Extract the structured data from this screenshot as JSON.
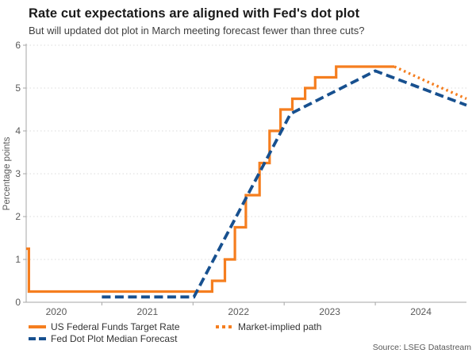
{
  "header": {
    "title": "Rate cut expectations are aligned with Fed's dot plot",
    "subtitle": "But will updated dot plot in March meeting forecast fewer than three cuts?"
  },
  "source": "Source: LSEG Datastream",
  "colors": {
    "orange": "#f57e1f",
    "navy": "#17508f",
    "grid": "#dbdbdb",
    "axis": "#a6a6a6",
    "tick_text": "#595959",
    "title_text": "#1a1a1a",
    "subtitle_text": "#404040",
    "legend_text": "#333333"
  },
  "legend": [
    {
      "label": "US Federal Funds Target Rate",
      "swatch": "solid-orange"
    },
    {
      "label": "Fed Dot Plot Median Forecast",
      "swatch": "dashed-navy"
    },
    {
      "label": "Market-implied path",
      "swatch": "dotted-orange"
    }
  ],
  "chart_data": {
    "type": "line",
    "title": "Rate cut expectations are aligned with Fed's dot plot",
    "subtitle": "But will updated dot plot in March meeting forecast fewer than three cuts?",
    "xlabel": "",
    "ylabel": "Percentage points",
    "ylim": [
      0,
      6
    ],
    "yticks": [
      0,
      1,
      2,
      3,
      4,
      5,
      6
    ],
    "xlim": [
      2020.17,
      2025.0
    ],
    "xticks": [
      2021,
      2022,
      2023,
      2024
    ],
    "xtick_labels": [
      {
        "label": "2020",
        "t": 2020.5
      },
      {
        "label": "2021",
        "t": 2021.5
      },
      {
        "label": "2022",
        "t": 2022.5
      },
      {
        "label": "2023",
        "t": 2023.5
      },
      {
        "label": "2024",
        "t": 2024.5
      }
    ],
    "grid": "horizontal-dotted",
    "legend_position": "bottom",
    "series": [
      {
        "name": "US Federal Funds Target Rate",
        "type": "step-after",
        "line": "solid",
        "color_key": "orange",
        "width": 3.2,
        "points": [
          [
            2020.17,
            1.25
          ],
          [
            2020.2,
            0.25
          ],
          [
            2022.21,
            0.5
          ],
          [
            2022.35,
            1.0
          ],
          [
            2022.46,
            1.75
          ],
          [
            2022.58,
            2.5
          ],
          [
            2022.73,
            3.25
          ],
          [
            2022.84,
            4.0
          ],
          [
            2022.96,
            4.5
          ],
          [
            2023.09,
            4.75
          ],
          [
            2023.23,
            5.0
          ],
          [
            2023.34,
            5.25
          ],
          [
            2023.57,
            5.5
          ],
          [
            2024.21,
            5.5
          ]
        ]
      },
      {
        "name": "Market-implied path",
        "type": "linear",
        "line": "dotted",
        "color_key": "orange",
        "width": 3.4,
        "points": [
          [
            2024.21,
            5.5
          ],
          [
            2024.6,
            5.12
          ],
          [
            2025.0,
            4.75
          ]
        ]
      },
      {
        "name": "Fed Dot Plot Median Forecast",
        "type": "linear",
        "line": "dashed",
        "color_key": "navy",
        "width": 3.8,
        "points": [
          [
            2021.0,
            0.125
          ],
          [
            2022.01,
            0.125
          ],
          [
            2023.07,
            4.4
          ],
          [
            2024.0,
            5.4
          ],
          [
            2025.0,
            4.6
          ]
        ]
      }
    ]
  }
}
